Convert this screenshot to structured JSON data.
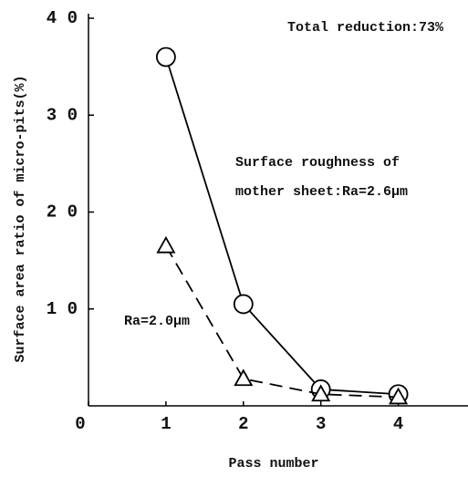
{
  "chart_data": {
    "type": "line",
    "xlabel": "Pass number",
    "ylabel": "Surface area ratio of micro-pits(%)",
    "annotations": [
      "Total reduction:73%",
      "Surface roughness of",
      "mother sheet:Ra=2.6μm",
      "Ra=2.0μm"
    ],
    "x": [
      1,
      2,
      3,
      4
    ],
    "series": [
      {
        "color": "#000000",
        "marker": "circle",
        "linestyle": "solid",
        "values": [
          36,
          10.5,
          1.7,
          1.2
        ]
      },
      {
        "color": "#000000",
        "marker": "triangle",
        "linestyle": "dashed",
        "values": [
          16.5,
          2.8,
          1.2,
          0.9
        ]
      }
    ],
    "xlim": [
      0,
      4.9
    ],
    "xticks": [
      0,
      1,
      2,
      3,
      4
    ],
    "ylim": [
      0,
      40
    ],
    "yticks": [
      {
        "value": 10,
        "label": "1 0"
      },
      {
        "value": 20,
        "label": "2 0"
      },
      {
        "value": 30,
        "label": "3 0"
      },
      {
        "value": 40,
        "label": "4 0"
      }
    ]
  }
}
